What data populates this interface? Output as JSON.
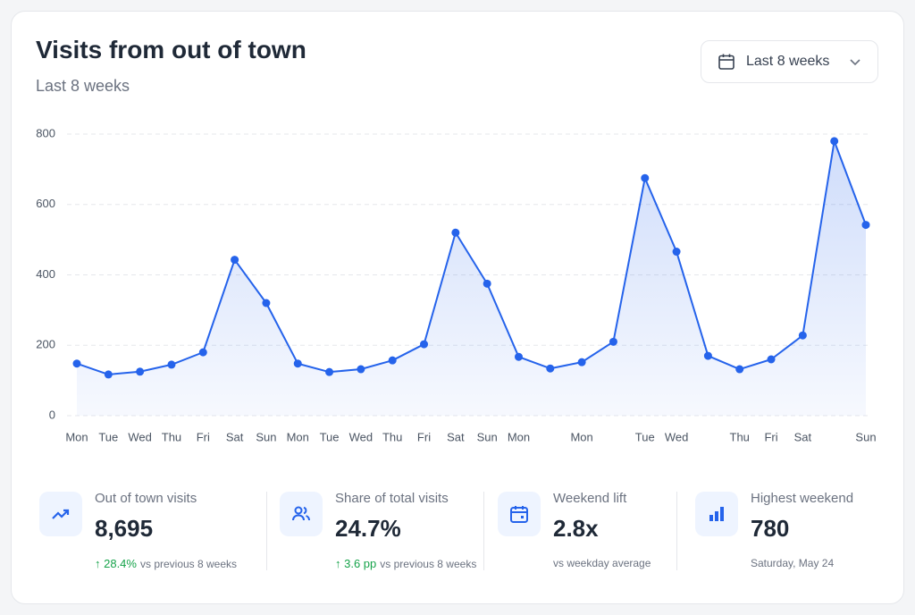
{
  "header": {
    "title": "Visits from out of town",
    "subtitle": "Last 8 weeks",
    "range_button": "Last 8 weeks"
  },
  "chart_data": {
    "type": "line",
    "categories": [
      "Mon",
      "Tue",
      "Wed",
      "Thu",
      "Fri",
      "Sat",
      "Sun",
      "Mon",
      "Tue",
      "Wed",
      "Thu",
      "Fri",
      "Sat",
      "Sun",
      "Mon",
      null,
      "Mon",
      null,
      "Tue",
      "Wed",
      null,
      "Thu",
      "Fri",
      "Sat",
      null,
      "Sun"
    ],
    "series": [
      {
        "name": "Out of town visits",
        "color": "#2563eb",
        "values": [
          148,
          117,
          125,
          145,
          180,
          443,
          320,
          148,
          124,
          132,
          157,
          203,
          520,
          375,
          167,
          134,
          152,
          210,
          675,
          466,
          170,
          132,
          160,
          228,
          780,
          542
        ]
      }
    ],
    "ylim": [
      0,
      800
    ],
    "yticks": [
      0,
      200,
      400,
      600,
      800
    ],
    "grid": true
  },
  "stats": [
    {
      "label": "Out of town visits",
      "value": "8,695",
      "delta": "↑ 28.4%",
      "note": "vs previous 8 weeks"
    },
    {
      "label": "Share of total visits",
      "value": "24.7%",
      "delta": "↑ 3.6 pp",
      "note": "vs previous 8 weeks"
    },
    {
      "label": "Weekend lift",
      "value": "2.8x",
      "note": "vs weekday average"
    },
    {
      "label": "Highest weekend",
      "value": "780",
      "note": "Saturday, May 24"
    }
  ]
}
